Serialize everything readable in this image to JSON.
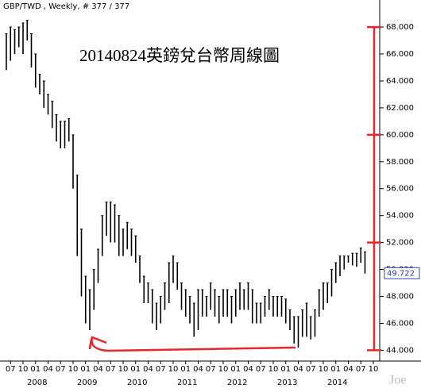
{
  "chart_data": {
    "type": "hilo",
    "header": "GBP/TWD , Weekly, # 377 / 377",
    "title": "20140824英鎊兌台幣周線圖",
    "watermark": "Joe",
    "color": "#000000",
    "x": [
      "2007-06",
      "2007-07",
      "2007-08",
      "2007-09",
      "2007-10",
      "2007-11",
      "2007-12",
      "2008-01",
      "2008-02",
      "2008-03",
      "2008-04",
      "2008-05",
      "2008-06",
      "2008-07",
      "2008-08",
      "2008-09",
      "2008-10",
      "2008-11",
      "2008-12",
      "2009-01",
      "2009-02",
      "2009-03",
      "2009-04",
      "2009-05",
      "2009-06",
      "2009-07",
      "2009-08",
      "2009-09",
      "2009-10",
      "2009-11",
      "2009-12",
      "2010-01",
      "2010-02",
      "2010-03",
      "2010-04",
      "2010-05",
      "2010-06",
      "2010-07",
      "2010-08",
      "2010-09",
      "2010-10",
      "2010-11",
      "2010-12",
      "2011-01",
      "2011-02",
      "2011-03",
      "2011-04",
      "2011-05",
      "2011-06",
      "2011-07",
      "2011-08",
      "2011-09",
      "2011-10",
      "2011-11",
      "2011-12",
      "2012-01",
      "2012-02",
      "2012-03",
      "2012-04",
      "2012-05",
      "2012-06",
      "2012-07",
      "2012-08",
      "2012-09",
      "2012-10",
      "2012-11",
      "2012-12",
      "2013-01",
      "2013-02",
      "2013-03",
      "2013-04",
      "2013-05",
      "2013-06",
      "2013-07",
      "2013-08",
      "2013-09",
      "2013-10",
      "2013-11",
      "2013-12",
      "2014-01",
      "2014-02",
      "2014-03",
      "2014-04",
      "2014-05",
      "2014-06",
      "2014-07",
      "2014-08"
    ],
    "high": [
      67.5,
      68,
      67.8,
      68,
      68.3,
      68.5,
      67.5,
      66,
      64.5,
      64,
      63,
      62.5,
      61.5,
      61,
      61,
      61.2,
      60,
      57,
      53,
      49.5,
      48.5,
      50,
      51.5,
      54,
      55,
      55,
      54.8,
      54,
      53,
      53.5,
      53,
      52.5,
      51,
      49.5,
      49,
      48.5,
      47.5,
      48,
      49,
      50.5,
      51,
      50.5,
      49,
      48.5,
      48,
      47.5,
      48.5,
      48.5,
      48,
      49,
      48.5,
      48,
      48.5,
      48.5,
      48,
      48.5,
      49,
      48.5,
      49,
      48.5,
      47.5,
      47.5,
      48,
      48.5,
      48,
      48,
      48,
      47.8,
      47,
      46.5,
      46.5,
      47,
      47.5,
      46.5,
      47,
      48.5,
      49,
      49,
      50,
      50.5,
      51,
      51,
      51,
      51.2,
      51.2,
      51.6,
      51.3
    ],
    "low": [
      64.8,
      65.5,
      66,
      66.5,
      66,
      67,
      65,
      63.5,
      63,
      62,
      61.5,
      60.5,
      59.5,
      59,
      59,
      59.5,
      56,
      51,
      48,
      46,
      45.5,
      47,
      49,
      51,
      52.5,
      52,
      52,
      51,
      51,
      51.5,
      51,
      50.5,
      49,
      47.5,
      47.5,
      46,
      45.5,
      46,
      47,
      47.5,
      49,
      48.5,
      47,
      46.5,
      46,
      45,
      45.5,
      46.5,
      46.5,
      47,
      46.5,
      46,
      46.5,
      46.5,
      46,
      46.5,
      47,
      47,
      47,
      46,
      46,
      46,
      46.5,
      47,
      46.5,
      46.5,
      46.5,
      46,
      45.5,
      44.5,
      44.2,
      45,
      45,
      44.8,
      45,
      46.5,
      47,
      47.5,
      48,
      49,
      49.5,
      50,
      50.5,
      50.3,
      50.2,
      50.5,
      49.7
    ],
    "last_value": 49.722,
    "ylim": [
      43.2,
      69.3
    ],
    "yticks": [
      {
        "value": 44,
        "label": "44.000"
      },
      {
        "value": 46,
        "label": "46.000"
      },
      {
        "value": 48,
        "label": "48.000"
      },
      {
        "value": 50,
        "label": "50.000"
      },
      {
        "value": 52,
        "label": "52.000"
      },
      {
        "value": 54,
        "label": "54.000"
      },
      {
        "value": 56,
        "label": "56.000"
      },
      {
        "value": 58,
        "label": "58.000"
      },
      {
        "value": 60,
        "label": "60.000"
      },
      {
        "value": 62,
        "label": "62.000"
      },
      {
        "value": 64,
        "label": "64.000"
      },
      {
        "value": 66,
        "label": "66.000"
      },
      {
        "value": 68,
        "label": "68.000"
      }
    ],
    "xticks": [
      {
        "value": "2007-07",
        "label": "07"
      },
      {
        "value": "2007-10",
        "label": "10"
      },
      {
        "value": "2008-01",
        "label": "01"
      },
      {
        "value": "2008-04",
        "label": "04"
      },
      {
        "value": "2008-07",
        "label": "07"
      },
      {
        "value": "2008-10",
        "label": "10"
      },
      {
        "value": "2009-01",
        "label": "01"
      },
      {
        "value": "2009-04",
        "label": "04"
      },
      {
        "value": "2009-07",
        "label": "07"
      },
      {
        "value": "2009-10",
        "label": "10"
      },
      {
        "value": "2010-01",
        "label": "01"
      },
      {
        "value": "2010-04",
        "label": "04"
      },
      {
        "value": "2010-07",
        "label": "07"
      },
      {
        "value": "2010-10",
        "label": "10"
      },
      {
        "value": "2011-01",
        "label": "01"
      },
      {
        "value": "2011-04",
        "label": "04"
      },
      {
        "value": "2011-07",
        "label": "07"
      },
      {
        "value": "2011-10",
        "label": "10"
      },
      {
        "value": "2012-01",
        "label": "01"
      },
      {
        "value": "2012-04",
        "label": "04"
      },
      {
        "value": "2012-07",
        "label": "07"
      },
      {
        "value": "2012-10",
        "label": "10"
      },
      {
        "value": "2013-01",
        "label": "01"
      },
      {
        "value": "2013-04",
        "label": "04"
      },
      {
        "value": "2013-07",
        "label": "07"
      },
      {
        "value": "2013-10",
        "label": "10"
      },
      {
        "value": "2014-01",
        "label": "01"
      },
      {
        "value": "2014-04",
        "label": "04"
      },
      {
        "value": "2014-07",
        "label": "07"
      },
      {
        "value": "2014-10",
        "label": "10"
      }
    ],
    "year_labels": [
      {
        "value": "2008-01",
        "label": "2008"
      },
      {
        "value": "2009-01",
        "label": "2009"
      },
      {
        "value": "2010-01",
        "label": "2010"
      },
      {
        "value": "2011-01",
        "label": "2011"
      },
      {
        "value": "2012-01",
        "label": "2012"
      },
      {
        "value": "2013-01",
        "label": "2013"
      },
      {
        "value": "2014-01",
        "label": "2014"
      }
    ],
    "annotation_levels": [
      68,
      60,
      52,
      44
    ],
    "annotation_color": "#e8262b"
  }
}
